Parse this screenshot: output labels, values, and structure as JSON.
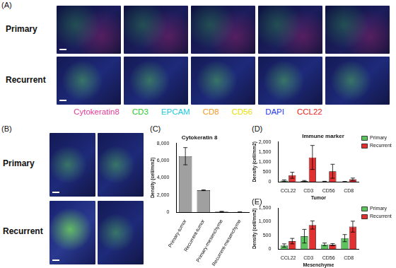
{
  "panels": {
    "A": {
      "label": "(A)",
      "rows": [
        "Primary",
        "Recurrent"
      ],
      "stains": [
        {
          "name": "Cytokeratin8",
          "color": "#e0409a"
        },
        {
          "name": "CD3",
          "color": "#2ec82e"
        },
        {
          "name": "EPCAM",
          "color": "#22c8d8"
        },
        {
          "name": "CD8",
          "color": "#f39a1e"
        },
        {
          "name": "CD56",
          "color": "#e8e000"
        },
        {
          "name": "DAPI",
          "color": "#2a3aee"
        },
        {
          "name": "CCL22",
          "color": "#ee2222"
        }
      ]
    },
    "B": {
      "label": "(B)",
      "rows": [
        "Primary",
        "Recurrent"
      ]
    }
  },
  "chart_data": [
    {
      "panel_label": "(C)",
      "type": "bar",
      "title": "Cytokeratin 8",
      "y_label": "Density (cell/mm2)",
      "categories": [
        "Primary-tumor",
        "Recurrent-tumor",
        "Primary-mesenchyme",
        "Recurrent-mesenchyme"
      ],
      "values": [
        6500,
        2550,
        80,
        20
      ],
      "errors": [
        1000,
        50,
        20,
        5
      ],
      "color": "#a0a0a0",
      "ylim": [
        0,
        8000
      ],
      "yticks": [
        0,
        2000,
        4000,
        6000,
        8000
      ],
      "grid": false
    },
    {
      "panel_label": "(D)",
      "type": "bar",
      "title": "Immune marker",
      "x_label": "Tumor",
      "y_label": "Density (cell/mm2)",
      "categories": [
        "CCL22",
        "CD3",
        "CD56",
        "CD8"
      ],
      "series": [
        {
          "name": "Primary",
          "color": "#5cc45c",
          "values": [
            60,
            40,
            20,
            10
          ],
          "errors": [
            40,
            30,
            10,
            10
          ]
        },
        {
          "name": "Recurrent",
          "color": "#e03030",
          "values": [
            330,
            1220,
            530,
            130
          ],
          "errors": [
            150,
            600,
            350,
            60
          ]
        }
      ],
      "ylim": [
        0,
        2000
      ],
      "yticks": [
        0,
        500,
        1000,
        1500,
        2000
      ],
      "grid": false,
      "legend": "top-right"
    },
    {
      "panel_label": "(E)",
      "type": "bar",
      "x_label": "Mesenchyme",
      "y_label": "Density (cell/mm2)",
      "categories": [
        "CCL22",
        "CD3",
        "CD56",
        "CD8"
      ],
      "series": [
        {
          "name": "Primary",
          "color": "#5cc45c",
          "values": [
            130,
            470,
            170,
            400
          ],
          "errors": [
            60,
            250,
            50,
            130
          ]
        },
        {
          "name": "Recurrent",
          "color": "#e03030",
          "values": [
            290,
            880,
            160,
            820
          ],
          "errors": [
            100,
            150,
            40,
            200
          ]
        }
      ],
      "ylim": [
        0,
        1500
      ],
      "yticks": [
        0,
        500,
        1000,
        1500
      ],
      "grid": false,
      "legend": "top-right"
    }
  ]
}
